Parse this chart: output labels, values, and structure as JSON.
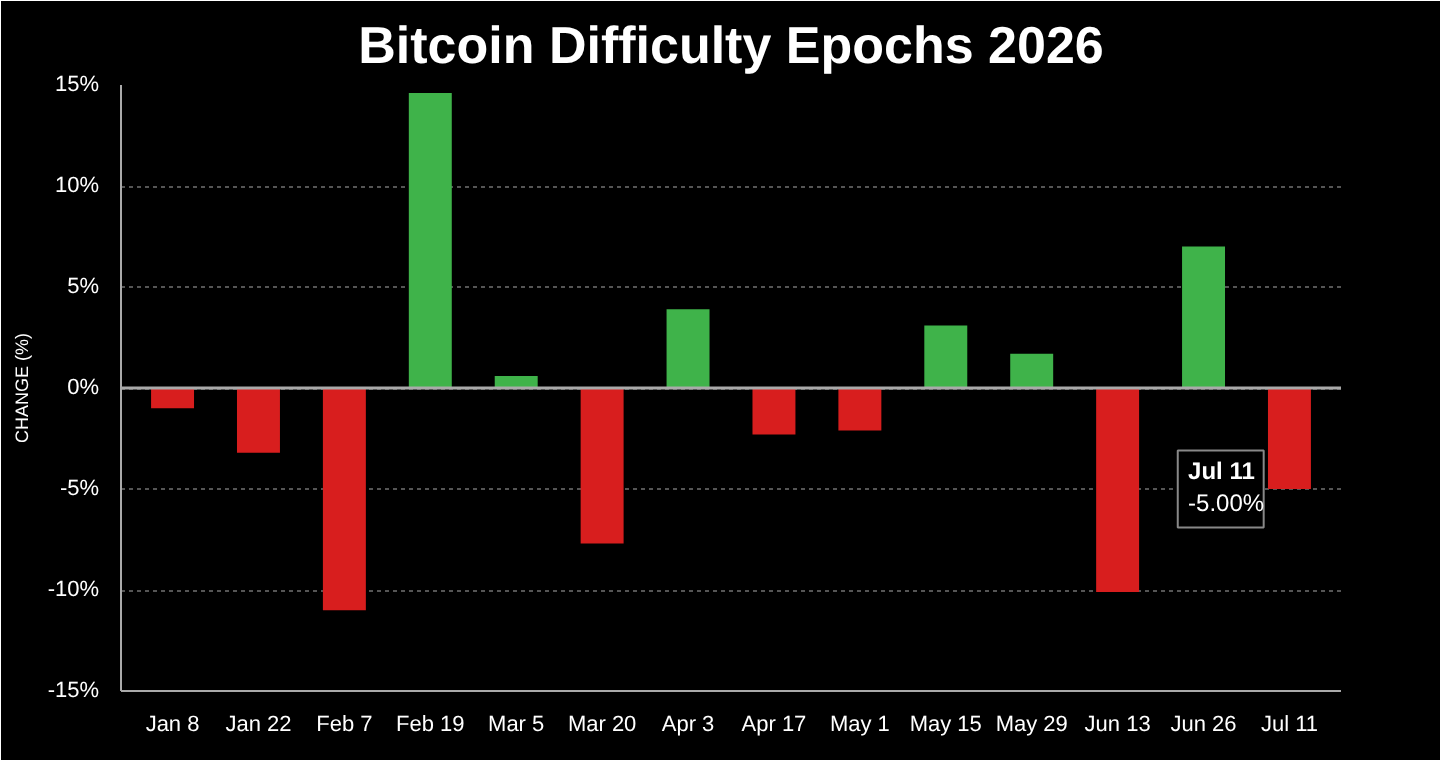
{
  "chart_data": {
    "type": "bar",
    "title": "Bitcoin Difficulty Epochs 2026",
    "ylabel": "CHANGE (%)",
    "categories": [
      "Jan 8",
      "Jan 22",
      "Feb 7",
      "Feb 19",
      "Mar 5",
      "Mar 20",
      "Apr 3",
      "Apr 17",
      "May 1",
      "May 15",
      "May 29",
      "Jun 13",
      "Jun 26",
      "Jul 11"
    ],
    "values": [
      -1.0,
      -3.2,
      -11.0,
      14.6,
      0.6,
      -7.7,
      3.9,
      -2.3,
      -2.1,
      3.1,
      1.7,
      -10.1,
      7.0,
      -5.0
    ],
    "colors": [
      "#d81e1e",
      "#d81e1e",
      "#d81e1e",
      "#3fb34a",
      "#3fb34a",
      "#d81e1e",
      "#3fb34a",
      "#d81e1e",
      "#d81e1e",
      "#3fb34a",
      "#3fb34a",
      "#d81e1e",
      "#3fb34a",
      "#d81e1e"
    ],
    "annotations": [
      {
        "text": "Jul 11",
        "x": "Jul 11",
        "y": -5.0
      },
      {
        "text": "-5.00%",
        "x": "Jul 11",
        "y": -5.0
      }
    ],
    "ylim": [
      -15,
      15
    ],
    "yticks": [
      {
        "value": -15,
        "label": "-15%"
      },
      {
        "value": -10,
        "label": "-10%"
      },
      {
        "value": -5,
        "label": "-5%"
      },
      {
        "value": 0,
        "label": "0%"
      },
      {
        "value": 5,
        "label": "5%"
      },
      {
        "value": 10,
        "label": "10%"
      },
      {
        "value": 15,
        "label": "15%"
      }
    ],
    "grid": "y"
  }
}
